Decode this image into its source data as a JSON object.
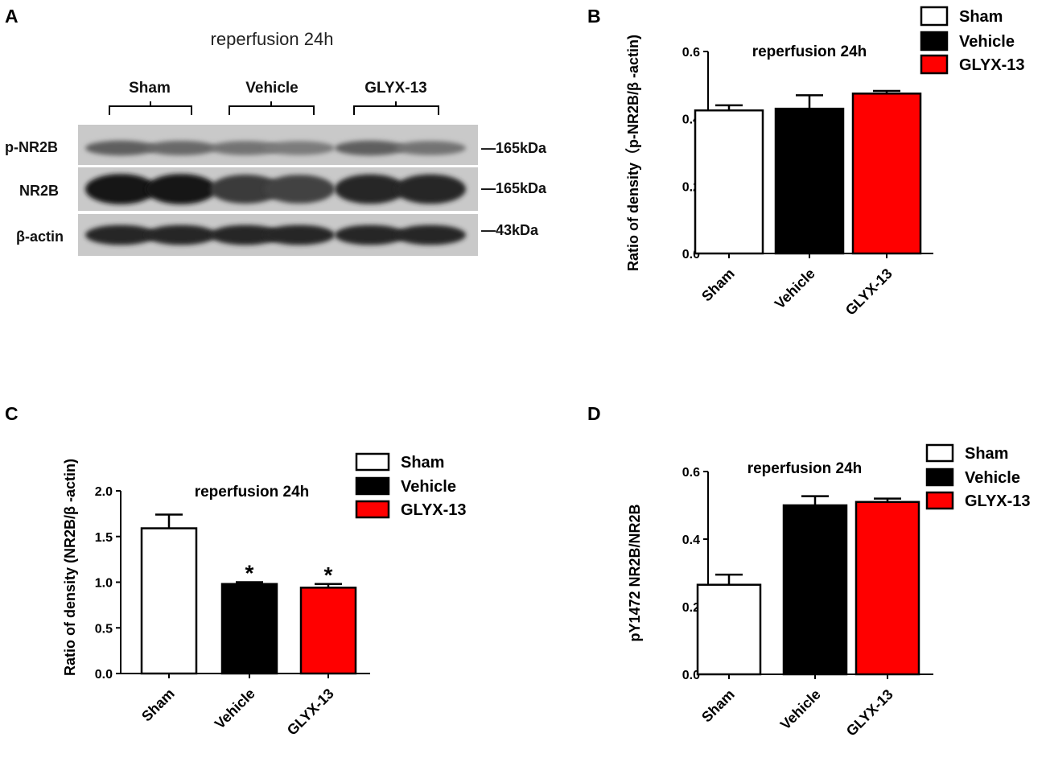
{
  "figure": {
    "panels": [
      "A",
      "B",
      "C",
      "D"
    ]
  },
  "blot": {
    "title": "reperfusion 24h",
    "groups": [
      "Sham",
      "Vehicle",
      "GLYX-13"
    ],
    "rows": [
      {
        "label": "p-NR2B",
        "marker": "—165kDa",
        "band_intensity": [
          0.55,
          0.5,
          0.45,
          0.4,
          0.55,
          0.45
        ]
      },
      {
        "label": "NR2B",
        "marker": "—165kDa",
        "band_intensity": [
          0.95,
          0.95,
          0.75,
          0.7,
          0.85,
          0.85
        ]
      },
      {
        "label": "β-actin",
        "marker": "—43kDa",
        "band_intensity": [
          0.85,
          0.85,
          0.85,
          0.85,
          0.85,
          0.85
        ]
      }
    ]
  },
  "chart_data": [
    {
      "panel": "B",
      "type": "bar",
      "title": "reperfusion 24h",
      "ylabel": "Ratio of density（p-NR2B/β -actin)",
      "categories": [
        "Sham",
        "Vehicle",
        "GLYX-13"
      ],
      "values": [
        0.425,
        0.43,
        0.475
      ],
      "errors": [
        0.015,
        0.04,
        0.008
      ],
      "colors": [
        "#ffffff",
        "#000000",
        "#ff0000"
      ],
      "ylim": [
        0,
        0.6
      ],
      "yticks": [
        "0.0",
        "0.2",
        "0.4",
        "0.6"
      ],
      "significance": [
        "",
        "",
        ""
      ],
      "legend": [
        "Sham",
        "Vehicle",
        "GLYX-13"
      ],
      "legend_position": "top-right"
    },
    {
      "panel": "C",
      "type": "bar",
      "title": "reperfusion 24h",
      "ylabel": "Ratio of density (NR2B/β -actin)",
      "categories": [
        "Sham",
        "Vehicle",
        "GLYX-13"
      ],
      "values": [
        1.59,
        0.98,
        0.94
      ],
      "errors": [
        0.15,
        0.02,
        0.04
      ],
      "colors": [
        "#ffffff",
        "#000000",
        "#ff0000"
      ],
      "ylim": [
        0,
        2.0
      ],
      "yticks": [
        "0.0",
        "0.5",
        "1.0",
        "1.5",
        "2.0"
      ],
      "significance": [
        "",
        "*",
        "*"
      ],
      "legend": [
        "Sham",
        "Vehicle",
        "GLYX-13"
      ],
      "legend_position": "top-right"
    },
    {
      "panel": "D",
      "type": "bar",
      "title": "reperfusion 24h",
      "ylabel": "pY1472 NR2B/NR2B",
      "categories": [
        "Sham",
        "Vehicle",
        "GLYX-13"
      ],
      "values": [
        0.265,
        0.5,
        0.51
      ],
      "errors": [
        0.03,
        0.027,
        0.01
      ],
      "colors": [
        "#ffffff",
        "#000000",
        "#ff0000"
      ],
      "ylim": [
        0,
        0.6
      ],
      "yticks": [
        "0.0",
        "0.2",
        "0.4",
        "0.6"
      ],
      "significance": [
        "",
        "",
        ""
      ],
      "legend": [
        "Sham",
        "Vehicle",
        "GLYX-13"
      ],
      "legend_position": "top-right"
    }
  ]
}
